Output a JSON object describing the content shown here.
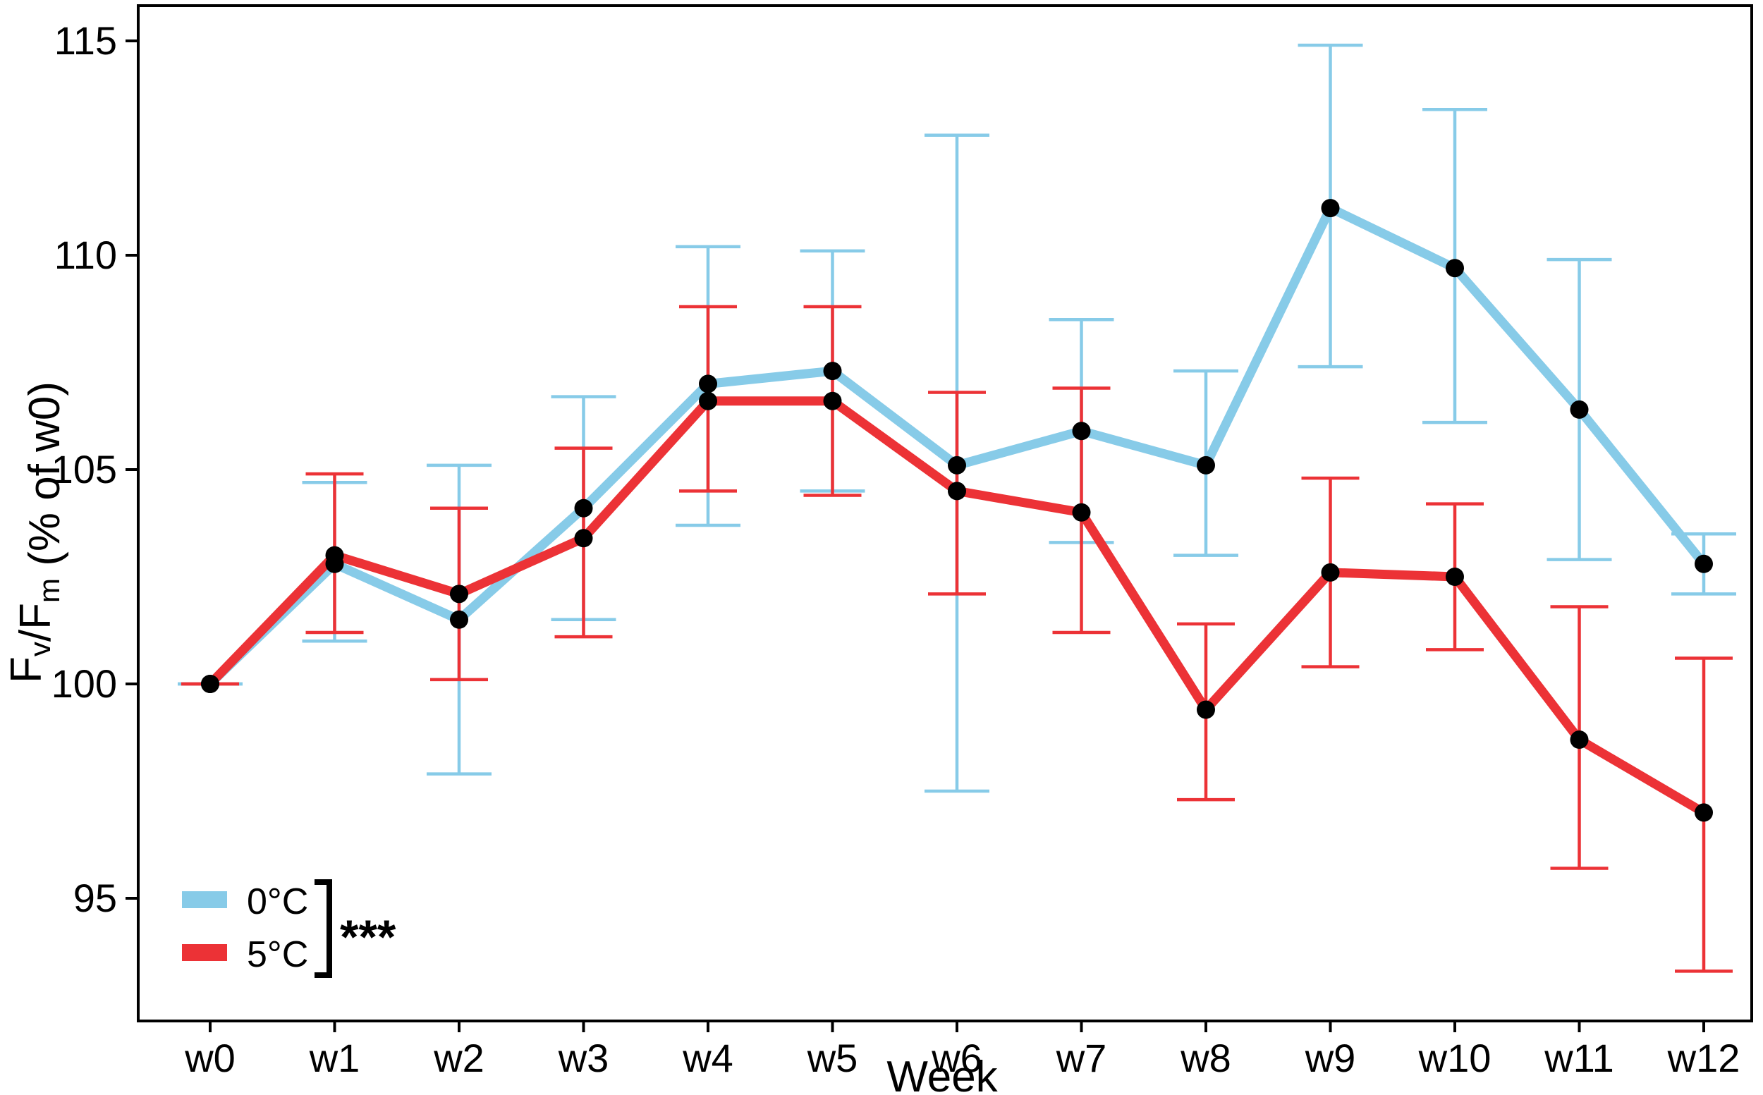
{
  "chart_data": {
    "type": "line",
    "title": "",
    "xlabel": "Week",
    "ylabel_plain": "Fv/Fm (% of w0)",
    "ylabel_parts": [
      {
        "t": "F",
        "sub": false
      },
      {
        "t": "v",
        "sub": true
      },
      {
        "t": "/F",
        "sub": false
      },
      {
        "t": "m",
        "sub": true
      },
      {
        "t": " (% of w0)",
        "sub": false
      }
    ],
    "categories": [
      "w0",
      "w1",
      "w2",
      "w3",
      "w4",
      "w5",
      "w6",
      "w7",
      "w8",
      "w9",
      "w10",
      "w11",
      "w12"
    ],
    "yticks": [
      95,
      100,
      105,
      110,
      115
    ],
    "ylim": [
      92.2,
      115.8
    ],
    "grid": false,
    "legend_position": "bottom-left-inside",
    "series": [
      {
        "name": "0°C",
        "color": "#87CBE8",
        "values": [
          100.0,
          102.8,
          101.5,
          104.1,
          107.0,
          107.3,
          105.1,
          105.9,
          105.1,
          111.1,
          109.7,
          106.4,
          102.8
        ],
        "err_low": [
          100.0,
          101.0,
          97.9,
          101.5,
          103.7,
          104.5,
          97.5,
          103.3,
          103.0,
          107.4,
          106.1,
          102.9,
          102.1
        ],
        "err_high": [
          100.0,
          104.7,
          105.1,
          106.7,
          110.2,
          110.1,
          112.8,
          108.5,
          107.3,
          114.9,
          113.4,
          109.9,
          103.5
        ]
      },
      {
        "name": "5°C",
        "color": "#EC3236",
        "values": [
          100.0,
          103.0,
          102.1,
          103.4,
          106.6,
          106.6,
          104.5,
          104.0,
          99.4,
          102.6,
          102.5,
          98.7,
          97.0
        ],
        "err_low": [
          100.0,
          101.2,
          100.1,
          101.1,
          104.5,
          104.4,
          102.1,
          101.2,
          97.3,
          100.4,
          100.8,
          95.7,
          93.3
        ],
        "err_high": [
          100.0,
          104.9,
          104.1,
          105.5,
          108.8,
          108.8,
          106.8,
          106.9,
          101.4,
          104.8,
          104.2,
          101.8,
          100.6
        ]
      }
    ],
    "point_color": "#000000",
    "significance": "***"
  }
}
